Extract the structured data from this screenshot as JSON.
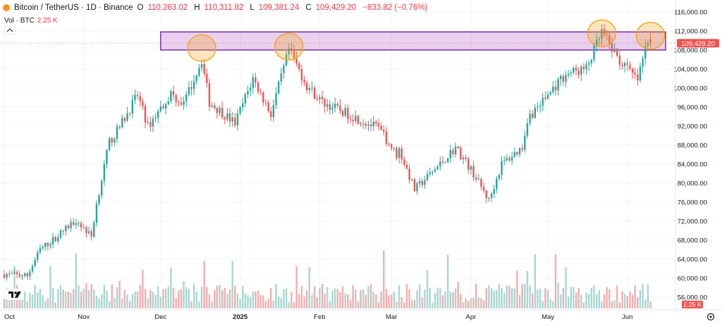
{
  "legend": {
    "symbol": "Bitcoin / TetherUS · 1D · Binance",
    "open_label": "O",
    "open": "110,263.02",
    "high_label": "H",
    "high": "110,311.82",
    "low_label": "L",
    "low": "109,381.24",
    "close_label": "C",
    "close": "109,429.20",
    "change": "−833.82 (−0.76%)",
    "vol_label": "Vol · BTC",
    "vol_value": "2.25 K"
  },
  "colors": {
    "up": "#26a69a",
    "down": "#ef5350",
    "up_volume": "#a8d7d2",
    "down_volume": "#f2aeae",
    "box": "#7b2fa6",
    "circle": "#f5a623"
  },
  "chart_data": {
    "type": "candlestick",
    "title": "Bitcoin / TetherUS · 1D · Binance",
    "price_axis": {
      "ticks": [
        116000,
        112000,
        108000,
        104000,
        100000,
        96000,
        92000,
        88000,
        84000,
        80000,
        76000,
        72000,
        68000,
        64000,
        60000,
        56000
      ],
      "tick_labels": [
        "116,000.00",
        "112,000.00",
        "108,000.00",
        "104,000.00",
        "100,000.00",
        "96,000.00",
        "92,000.00",
        "88,000.00",
        "84,000.00",
        "80,000.00",
        "76,000.00",
        "72,000.00",
        "68,000.00",
        "64,000.00",
        "60,000.00",
        "56,000.00"
      ],
      "ylim": [
        53900,
        117800
      ]
    },
    "time_axis": {
      "labels": [
        "Oct",
        "Nov",
        "Dec",
        "2025",
        "Feb",
        "Mar",
        "Apr",
        "May",
        "Jun"
      ]
    },
    "last_price_label": "109,429.20",
    "last_volume_label": "2.25 K",
    "close_path": [
      [
        "2024-10-01",
        60800
      ],
      [
        "2024-10-10",
        60500
      ],
      [
        "2024-10-15",
        66000
      ],
      [
        "2024-10-21",
        68500
      ],
      [
        "2024-10-29",
        72300
      ],
      [
        "2024-11-04",
        68700
      ],
      [
        "2024-11-06",
        75600
      ],
      [
        "2024-11-11",
        88700
      ],
      [
        "2024-11-13",
        90000
      ],
      [
        "2024-11-22",
        98500
      ],
      [
        "2024-11-26",
        91900
      ],
      [
        "2024-12-05",
        98800
      ],
      [
        "2024-12-10",
        96600
      ],
      [
        "2024-12-17",
        106000
      ],
      [
        "2024-12-20",
        97000
      ],
      [
        "2024-12-30",
        92600
      ],
      [
        "2025-01-06",
        102000
      ],
      [
        "2025-01-13",
        94500
      ],
      [
        "2025-01-20",
        108000
      ],
      [
        "2025-01-27",
        100500
      ],
      [
        "2025-02-02",
        97000
      ],
      [
        "2025-02-24",
        91500
      ],
      [
        "2025-03-03",
        86000
      ],
      [
        "2025-03-04",
        87000
      ],
      [
        "2025-03-10",
        78600
      ],
      [
        "2025-03-20",
        84000
      ],
      [
        "2025-03-26",
        87500
      ],
      [
        "2025-04-02",
        82000
      ],
      [
        "2025-04-08",
        76300
      ],
      [
        "2025-04-13",
        84000
      ],
      [
        "2025-04-21",
        87500
      ],
      [
        "2025-04-23",
        93500
      ],
      [
        "2025-05-08",
        103000
      ],
      [
        "2025-05-16",
        104000
      ],
      [
        "2025-05-22",
        111700
      ],
      [
        "2025-05-29",
        105700
      ],
      [
        "2025-06-05",
        101600
      ],
      [
        "2025-06-09",
        110300
      ],
      [
        "2025-06-10",
        109429.2
      ]
    ],
    "annotations": [
      {
        "type": "rectangle",
        "price_from": 108000,
        "price_to": 111800,
        "from": "2024-12-01",
        "to": "2025-06-13"
      },
      {
        "type": "circle",
        "center": [
          "2024-12-17",
          108400
        ]
      },
      {
        "type": "circle",
        "center": [
          "2025-01-20",
          108700
        ]
      },
      {
        "type": "circle",
        "center": [
          "2025-05-22",
          111500
        ]
      },
      {
        "type": "circle",
        "center": [
          "2025-06-10",
          111000
        ]
      }
    ]
  }
}
